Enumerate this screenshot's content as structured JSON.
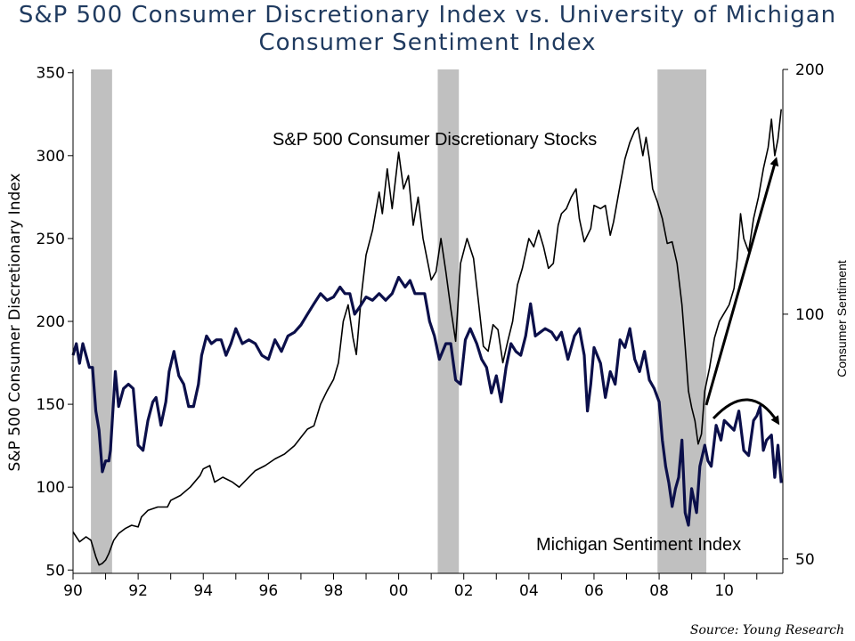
{
  "title": "S&P 500 Consumer Discretionary Index vs. University of Michigan Consumer Sentiment Index",
  "source": "Source: Young Research",
  "annotations": {
    "stocks": "S&P 500 Consumer Discretionary Stocks",
    "sentiment": "Michigan Sentiment Index"
  },
  "chart_data": {
    "type": "line",
    "title": "S&P 500 Consumer Discretionary Index vs. University of Michigan Consumer Sentiment Index",
    "xlabel": "",
    "ylabel": "S&P 500 Consumer Discretionary Index",
    "ylabel_right": "Consumer Sentiment",
    "xlim": [
      1990,
      2011.8
    ],
    "ylim": [
      48,
      352
    ],
    "ylim_right": [
      48,
      200
    ],
    "y_right_scale": "log",
    "x_tick_labels": [
      "90",
      "92",
      "94",
      "96",
      "98",
      "00",
      "02",
      "04",
      "06",
      "08",
      "10"
    ],
    "x_ticks": [
      1990,
      1992,
      1994,
      1996,
      1998,
      2000,
      2002,
      2004,
      2006,
      2008,
      2010
    ],
    "y_ticks": [
      50,
      100,
      150,
      200,
      250,
      300,
      350
    ],
    "y_right_ticks": [
      50,
      100,
      200
    ],
    "grid": false,
    "recessions": [
      [
        1990.55,
        1991.2
      ],
      [
        2001.2,
        2001.85
      ],
      [
        2007.95,
        2009.45
      ]
    ],
    "series": [
      {
        "name": "S&P 500 Consumer Discretionary Stocks",
        "axis": "left",
        "color": "#000000",
        "points": [
          [
            1990.0,
            73
          ],
          [
            1990.2,
            67
          ],
          [
            1990.4,
            70
          ],
          [
            1990.55,
            68
          ],
          [
            1990.7,
            58
          ],
          [
            1990.8,
            53
          ],
          [
            1990.9,
            54
          ],
          [
            1991.0,
            56
          ],
          [
            1991.1,
            60
          ],
          [
            1991.25,
            68
          ],
          [
            1991.4,
            72
          ],
          [
            1991.6,
            75
          ],
          [
            1991.8,
            77
          ],
          [
            1992.0,
            76
          ],
          [
            1992.1,
            82
          ],
          [
            1992.3,
            86
          ],
          [
            1992.6,
            88
          ],
          [
            1992.9,
            88
          ],
          [
            1993.0,
            92
          ],
          [
            1993.3,
            95
          ],
          [
            1993.6,
            100
          ],
          [
            1993.9,
            107
          ],
          [
            1994.0,
            111
          ],
          [
            1994.2,
            113
          ],
          [
            1994.35,
            103
          ],
          [
            1994.6,
            106
          ],
          [
            1994.9,
            103
          ],
          [
            1995.1,
            100
          ],
          [
            1995.3,
            104
          ],
          [
            1995.6,
            110
          ],
          [
            1995.9,
            113
          ],
          [
            1996.2,
            117
          ],
          [
            1996.5,
            120
          ],
          [
            1996.8,
            125
          ],
          [
            1997.0,
            130
          ],
          [
            1997.2,
            135
          ],
          [
            1997.4,
            137
          ],
          [
            1997.6,
            150
          ],
          [
            1997.8,
            158
          ],
          [
            1998.0,
            165
          ],
          [
            1998.15,
            175
          ],
          [
            1998.3,
            200
          ],
          [
            1998.45,
            210
          ],
          [
            1998.6,
            190
          ],
          [
            1998.7,
            180
          ],
          [
            1998.85,
            215
          ],
          [
            1999.0,
            240
          ],
          [
            1999.2,
            255
          ],
          [
            1999.4,
            278
          ],
          [
            1999.5,
            265
          ],
          [
            1999.65,
            292
          ],
          [
            1999.8,
            268
          ],
          [
            2000.0,
            302
          ],
          [
            2000.15,
            280
          ],
          [
            2000.3,
            288
          ],
          [
            2000.45,
            258
          ],
          [
            2000.6,
            275
          ],
          [
            2000.75,
            250
          ],
          [
            2000.9,
            235
          ],
          [
            2001.0,
            225
          ],
          [
            2001.15,
            230
          ],
          [
            2001.3,
            250
          ],
          [
            2001.45,
            230
          ],
          [
            2001.6,
            208
          ],
          [
            2001.75,
            188
          ],
          [
            2001.9,
            235
          ],
          [
            2002.1,
            250
          ],
          [
            2002.3,
            238
          ],
          [
            2002.45,
            212
          ],
          [
            2002.6,
            185
          ],
          [
            2002.75,
            182
          ],
          [
            2002.9,
            198
          ],
          [
            2003.05,
            195
          ],
          [
            2003.2,
            175
          ],
          [
            2003.35,
            188
          ],
          [
            2003.5,
            200
          ],
          [
            2003.65,
            222
          ],
          [
            2003.8,
            232
          ],
          [
            2004.0,
            250
          ],
          [
            2004.15,
            245
          ],
          [
            2004.3,
            255
          ],
          [
            2004.45,
            245
          ],
          [
            2004.6,
            232
          ],
          [
            2004.75,
            235
          ],
          [
            2004.9,
            258
          ],
          [
            2005.0,
            265
          ],
          [
            2005.15,
            268
          ],
          [
            2005.3,
            275
          ],
          [
            2005.45,
            280
          ],
          [
            2005.55,
            262
          ],
          [
            2005.7,
            248
          ],
          [
            2005.9,
            256
          ],
          [
            2006.0,
            270
          ],
          [
            2006.2,
            268
          ],
          [
            2006.35,
            270
          ],
          [
            2006.5,
            252
          ],
          [
            2006.6,
            260
          ],
          [
            2006.8,
            282
          ],
          [
            2006.95,
            298
          ],
          [
            2007.1,
            308
          ],
          [
            2007.25,
            315
          ],
          [
            2007.35,
            317
          ],
          [
            2007.5,
            300
          ],
          [
            2007.6,
            311
          ],
          [
            2007.7,
            298
          ],
          [
            2007.8,
            280
          ],
          [
            2007.95,
            272
          ],
          [
            2008.1,
            262
          ],
          [
            2008.25,
            247
          ],
          [
            2008.4,
            248
          ],
          [
            2008.55,
            235
          ],
          [
            2008.7,
            210
          ],
          [
            2008.8,
            185
          ],
          [
            2008.9,
            158
          ],
          [
            2009.0,
            148
          ],
          [
            2009.1,
            140
          ],
          [
            2009.2,
            126
          ],
          [
            2009.3,
            132
          ],
          [
            2009.4,
            158
          ],
          [
            2009.55,
            172
          ],
          [
            2009.7,
            190
          ],
          [
            2009.85,
            200
          ],
          [
            2010.0,
            205
          ],
          [
            2010.15,
            210
          ],
          [
            2010.3,
            220
          ],
          [
            2010.4,
            238
          ],
          [
            2010.5,
            265
          ],
          [
            2010.6,
            250
          ],
          [
            2010.75,
            242
          ],
          [
            2010.9,
            262
          ],
          [
            2011.05,
            275
          ],
          [
            2011.2,
            292
          ],
          [
            2011.35,
            305
          ],
          [
            2011.45,
            322
          ],
          [
            2011.55,
            300
          ],
          [
            2011.65,
            310
          ],
          [
            2011.75,
            328
          ]
        ]
      },
      {
        "name": "Michigan Sentiment Index",
        "axis": "right",
        "color": "#0b0f4a",
        "points": [
          [
            1990.0,
            89
          ],
          [
            1990.1,
            92
          ],
          [
            1990.2,
            87
          ],
          [
            1990.3,
            92
          ],
          [
            1990.4,
            89
          ],
          [
            1990.5,
            86
          ],
          [
            1990.6,
            86
          ],
          [
            1990.7,
            76
          ],
          [
            1990.8,
            72
          ],
          [
            1990.9,
            64
          ],
          [
            1991.0,
            66
          ],
          [
            1991.1,
            66
          ],
          [
            1991.15,
            68
          ],
          [
            1991.3,
            85
          ],
          [
            1991.4,
            77
          ],
          [
            1991.55,
            81
          ],
          [
            1991.7,
            82
          ],
          [
            1991.85,
            81
          ],
          [
            1992.0,
            69
          ],
          [
            1992.15,
            68
          ],
          [
            1992.3,
            74
          ],
          [
            1992.45,
            78
          ],
          [
            1992.55,
            79
          ],
          [
            1992.7,
            73
          ],
          [
            1992.85,
            78
          ],
          [
            1992.95,
            85
          ],
          [
            1993.1,
            90
          ],
          [
            1993.25,
            84
          ],
          [
            1993.4,
            82
          ],
          [
            1993.55,
            77
          ],
          [
            1993.7,
            77
          ],
          [
            1993.85,
            82
          ],
          [
            1993.95,
            89
          ],
          [
            1994.1,
            94
          ],
          [
            1994.25,
            92
          ],
          [
            1994.4,
            93
          ],
          [
            1994.55,
            93
          ],
          [
            1994.7,
            89
          ],
          [
            1994.85,
            92
          ],
          [
            1995.0,
            96
          ],
          [
            1995.2,
            92
          ],
          [
            1995.4,
            93
          ],
          [
            1995.6,
            92
          ],
          [
            1995.8,
            89
          ],
          [
            1996.0,
            88
          ],
          [
            1996.2,
            93
          ],
          [
            1996.4,
            90
          ],
          [
            1996.6,
            94
          ],
          [
            1996.8,
            95
          ],
          [
            1997.0,
            97
          ],
          [
            1997.2,
            100
          ],
          [
            1997.4,
            103
          ],
          [
            1997.6,
            106
          ],
          [
            1997.8,
            104
          ],
          [
            1998.0,
            105
          ],
          [
            1998.2,
            108
          ],
          [
            1998.35,
            106
          ],
          [
            1998.5,
            106
          ],
          [
            1998.65,
            100
          ],
          [
            1998.8,
            102
          ],
          [
            1999.0,
            105
          ],
          [
            1999.2,
            104
          ],
          [
            1999.4,
            106
          ],
          [
            1999.6,
            104
          ],
          [
            1999.8,
            106
          ],
          [
            2000.0,
            111
          ],
          [
            2000.2,
            108
          ],
          [
            2000.35,
            110
          ],
          [
            2000.5,
            106
          ],
          [
            2000.65,
            106
          ],
          [
            2000.8,
            106
          ],
          [
            2000.95,
            98
          ],
          [
            2001.1,
            94
          ],
          [
            2001.25,
            88
          ],
          [
            2001.45,
            92
          ],
          [
            2001.6,
            92
          ],
          [
            2001.75,
            83
          ],
          [
            2001.9,
            82
          ],
          [
            2002.05,
            93
          ],
          [
            2002.2,
            96
          ],
          [
            2002.4,
            92
          ],
          [
            2002.55,
            88
          ],
          [
            2002.7,
            86
          ],
          [
            2002.85,
            80
          ],
          [
            2003.0,
            84
          ],
          [
            2003.15,
            78
          ],
          [
            2003.3,
            86
          ],
          [
            2003.45,
            92
          ],
          [
            2003.6,
            90
          ],
          [
            2003.75,
            89
          ],
          [
            2003.9,
            94
          ],
          [
            2004.05,
            103
          ],
          [
            2004.2,
            94
          ],
          [
            2004.35,
            95
          ],
          [
            2004.5,
            96
          ],
          [
            2004.7,
            95
          ],
          [
            2004.85,
            93
          ],
          [
            2005.0,
            95
          ],
          [
            2005.2,
            88
          ],
          [
            2005.4,
            94
          ],
          [
            2005.55,
            96
          ],
          [
            2005.7,
            89
          ],
          [
            2005.8,
            76
          ],
          [
            2005.9,
            82
          ],
          [
            2006.0,
            91
          ],
          [
            2006.2,
            87
          ],
          [
            2006.35,
            79
          ],
          [
            2006.5,
            85
          ],
          [
            2006.65,
            82
          ],
          [
            2006.8,
            93
          ],
          [
            2006.95,
            91
          ],
          [
            2007.1,
            96
          ],
          [
            2007.25,
            88
          ],
          [
            2007.4,
            85
          ],
          [
            2007.55,
            90
          ],
          [
            2007.7,
            83
          ],
          [
            2007.85,
            81
          ],
          [
            2008.0,
            78
          ],
          [
            2008.1,
            70
          ],
          [
            2008.2,
            65
          ],
          [
            2008.3,
            62
          ],
          [
            2008.4,
            58
          ],
          [
            2008.5,
            61
          ],
          [
            2008.6,
            63
          ],
          [
            2008.7,
            70
          ],
          [
            2008.8,
            57
          ],
          [
            2008.9,
            55
          ],
          [
            2009.0,
            61
          ],
          [
            2009.15,
            57
          ],
          [
            2009.25,
            65
          ],
          [
            2009.4,
            69
          ],
          [
            2009.5,
            66
          ],
          [
            2009.6,
            65
          ],
          [
            2009.75,
            73
          ],
          [
            2009.9,
            70
          ],
          [
            2010.0,
            74
          ],
          [
            2010.15,
            73
          ],
          [
            2010.3,
            72
          ],
          [
            2010.45,
            76
          ],
          [
            2010.6,
            68
          ],
          [
            2010.75,
            67
          ],
          [
            2010.9,
            74
          ],
          [
            2011.0,
            75
          ],
          [
            2011.1,
            77
          ],
          [
            2011.2,
            68
          ],
          [
            2011.3,
            70
          ],
          [
            2011.45,
            71
          ],
          [
            2011.55,
            63
          ],
          [
            2011.65,
            69
          ],
          [
            2011.75,
            62
          ]
        ]
      }
    ]
  }
}
